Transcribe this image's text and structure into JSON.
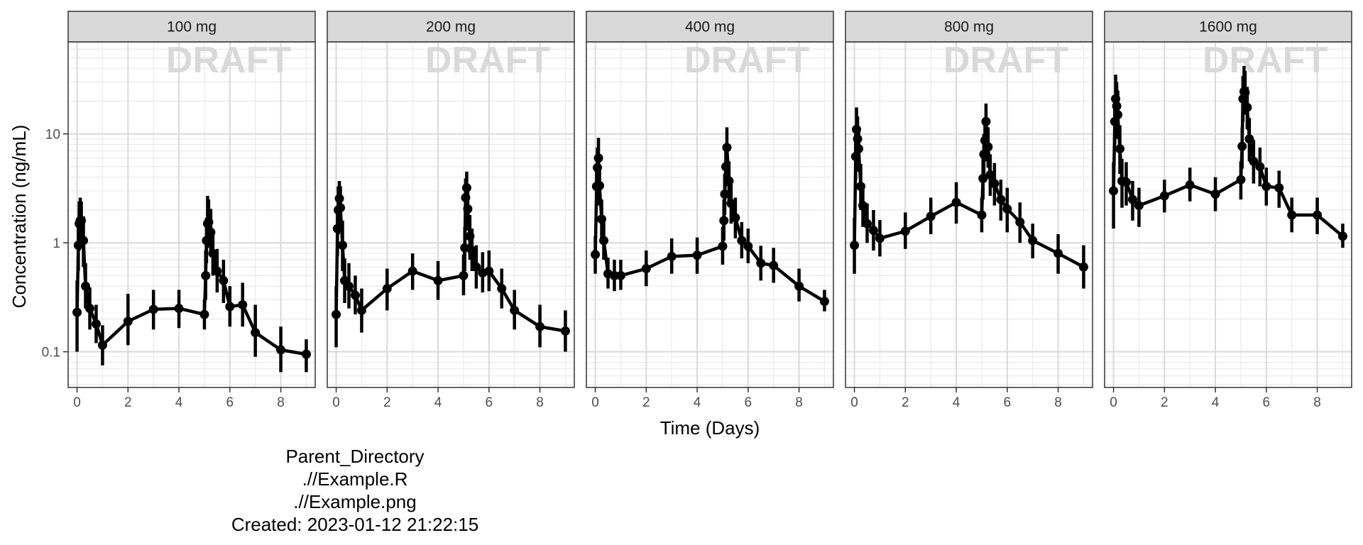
{
  "chart_data": {
    "type": "line",
    "xlabel": "Time (Days)",
    "ylabel": "Concentration (ng/mL)",
    "yscale": "log",
    "xlim": [
      -0.35,
      9.35
    ],
    "ylim": [
      0.047,
      70
    ],
    "xticks": [
      0,
      2,
      4,
      6,
      8
    ],
    "yticks": [
      0.1,
      1,
      10
    ],
    "ytick_labels": [
      "0.1",
      "1",
      "10"
    ],
    "grid": true,
    "watermark": "DRAFT",
    "panels": [
      {
        "label": "100 mg",
        "x": [
          0,
          0.05,
          0.083,
          0.125,
          0.167,
          0.25,
          0.333,
          0.5,
          0.75,
          1,
          2,
          3,
          4,
          5,
          5.05,
          5.083,
          5.125,
          5.167,
          5.25,
          5.333,
          5.5,
          5.75,
          6,
          6.5,
          7,
          8,
          9
        ],
        "y": [
          0.23,
          0.95,
          1.5,
          1.6,
          1.6,
          1.05,
          0.4,
          0.25,
          0.18,
          0.115,
          0.19,
          0.245,
          0.25,
          0.22,
          0.5,
          1.05,
          1.5,
          1.55,
          1.25,
          0.8,
          0.55,
          0.45,
          0.26,
          0.27,
          0.15,
          0.104,
          0.095
        ],
        "lo": [
          0.1,
          0.55,
          0.85,
          0.9,
          1.0,
          0.6,
          0.25,
          0.16,
          0.12,
          0.075,
          0.115,
          0.16,
          0.165,
          0.16,
          0.3,
          0.65,
          0.9,
          0.95,
          0.75,
          0.5,
          0.35,
          0.28,
          0.17,
          0.17,
          0.09,
          0.065,
          0.065
        ],
        "hi": [
          0.45,
          1.6,
          2.4,
          2.6,
          2.4,
          1.75,
          0.65,
          0.39,
          0.27,
          0.175,
          0.34,
          0.37,
          0.37,
          0.3,
          0.85,
          1.7,
          2.7,
          2.5,
          2.05,
          1.3,
          0.88,
          0.7,
          0.4,
          0.43,
          0.27,
          0.17,
          0.13
        ]
      },
      {
        "label": "200 mg",
        "x": [
          0,
          0.05,
          0.083,
          0.125,
          0.167,
          0.25,
          0.333,
          0.5,
          0.75,
          1,
          2,
          3,
          4,
          5,
          5.05,
          5.083,
          5.125,
          5.167,
          5.25,
          5.333,
          5.5,
          5.75,
          6,
          6.5,
          7,
          8,
          9
        ],
        "y": [
          0.22,
          1.35,
          2.0,
          2.55,
          2.1,
          0.95,
          0.45,
          0.4,
          0.33,
          0.24,
          0.38,
          0.55,
          0.45,
          0.5,
          0.9,
          2.6,
          3.2,
          2.05,
          1.15,
          0.85,
          0.6,
          0.53,
          0.55,
          0.38,
          0.24,
          0.17,
          0.155
        ],
        "lo": [
          0.11,
          0.75,
          1.2,
          1.6,
          1.3,
          0.55,
          0.28,
          0.25,
          0.22,
          0.15,
          0.24,
          0.37,
          0.3,
          0.33,
          0.55,
          1.6,
          2.1,
          1.3,
          0.7,
          0.55,
          0.38,
          0.35,
          0.36,
          0.25,
          0.16,
          0.11,
          0.1
        ],
        "hi": [
          0.4,
          2.2,
          3.3,
          3.7,
          3.3,
          1.6,
          0.72,
          0.65,
          0.5,
          0.38,
          0.58,
          0.8,
          0.68,
          0.78,
          1.4,
          3.9,
          4.5,
          3.2,
          1.8,
          1.35,
          0.95,
          0.82,
          0.85,
          0.58,
          0.37,
          0.27,
          0.24
        ]
      },
      {
        "label": "400 mg",
        "x": [
          0,
          0.05,
          0.083,
          0.125,
          0.167,
          0.25,
          0.333,
          0.5,
          0.75,
          1,
          2,
          3,
          4,
          5,
          5.05,
          5.083,
          5.125,
          5.167,
          5.25,
          5.333,
          5.5,
          5.75,
          6,
          6.5,
          7,
          8,
          9
        ],
        "y": [
          0.78,
          3.3,
          4.9,
          6.0,
          3.35,
          1.65,
          1.05,
          0.52,
          0.5,
          0.5,
          0.58,
          0.75,
          0.77,
          0.93,
          1.6,
          2.8,
          5.0,
          7.5,
          3.7,
          2.3,
          1.7,
          1.05,
          0.93,
          0.65,
          0.62,
          0.4,
          0.29
        ],
        "lo": [
          0.52,
          2.2,
          3.2,
          3.8,
          2.2,
          1.1,
          0.7,
          0.38,
          0.36,
          0.37,
          0.4,
          0.52,
          0.52,
          0.63,
          1.05,
          1.8,
          3.3,
          4.9,
          2.4,
          1.5,
          1.1,
          0.72,
          0.65,
          0.45,
          0.43,
          0.29,
          0.235
        ],
        "hi": [
          1.15,
          4.8,
          7.5,
          9.2,
          5.0,
          2.5,
          1.6,
          0.73,
          0.7,
          0.7,
          0.85,
          1.1,
          1.12,
          1.4,
          2.5,
          4.3,
          7.6,
          11.5,
          5.6,
          3.5,
          2.6,
          1.55,
          1.35,
          0.94,
          0.9,
          0.58,
          0.37
        ]
      },
      {
        "label": "800 mg",
        "x": [
          0,
          0.05,
          0.083,
          0.125,
          0.167,
          0.25,
          0.333,
          0.5,
          0.75,
          1,
          2,
          3,
          4,
          5,
          5.05,
          5.083,
          5.125,
          5.167,
          5.25,
          5.333,
          5.5,
          5.75,
          6,
          6.5,
          7,
          8,
          9
        ],
        "y": [
          0.95,
          6.2,
          11.0,
          9.0,
          7.3,
          3.3,
          2.2,
          1.5,
          1.3,
          1.1,
          1.28,
          1.75,
          2.35,
          1.8,
          3.9,
          6.5,
          8.7,
          13.0,
          7.6,
          4.2,
          3.5,
          2.5,
          2.05,
          1.55,
          1.05,
          0.8,
          0.6
        ],
        "lo": [
          0.52,
          3.8,
          6.8,
          5.6,
          4.5,
          2.0,
          1.4,
          1.0,
          0.85,
          0.75,
          0.88,
          1.2,
          1.5,
          1.25,
          2.5,
          4.2,
          5.6,
          8.3,
          4.9,
          2.7,
          2.2,
          1.6,
          1.25,
          1.0,
          0.72,
          0.52,
          0.38
        ],
        "hi": [
          1.7,
          10.0,
          17.5,
          14.5,
          11.5,
          5.3,
          3.5,
          2.3,
          2.0,
          1.62,
          1.9,
          2.6,
          3.6,
          2.6,
          6.0,
          10.0,
          13.5,
          19.0,
          11.5,
          6.5,
          5.4,
          3.8,
          3.2,
          2.35,
          1.5,
          1.2,
          0.95
        ]
      },
      {
        "label": "1600 mg",
        "x": [
          0,
          0.05,
          0.083,
          0.125,
          0.167,
          0.25,
          0.333,
          0.5,
          0.75,
          1,
          2,
          3,
          4,
          5,
          5.05,
          5.083,
          5.125,
          5.167,
          5.25,
          5.333,
          5.5,
          5.75,
          6,
          6.5,
          7,
          8,
          9
        ],
        "y": [
          3.0,
          13.0,
          21.0,
          18.0,
          15.0,
          7.3,
          3.7,
          3.6,
          2.5,
          2.2,
          2.7,
          3.4,
          2.8,
          3.8,
          7.7,
          21.0,
          24.5,
          24.0,
          17.5,
          9.0,
          5.6,
          5.0,
          3.3,
          3.2,
          1.8,
          1.8,
          1.15
        ],
        "lo": [
          1.35,
          8.0,
          12.5,
          10.5,
          9.0,
          4.3,
          2.1,
          2.2,
          1.6,
          1.4,
          1.9,
          2.4,
          1.95,
          2.5,
          4.8,
          13.0,
          15.0,
          15.5,
          11.0,
          5.6,
          3.5,
          3.3,
          2.2,
          2.1,
          1.25,
          1.2,
          0.9
        ],
        "hi": [
          5.5,
          20.0,
          35.0,
          30.0,
          25.0,
          12.0,
          5.9,
          5.5,
          3.7,
          3.2,
          3.8,
          4.9,
          4.0,
          5.6,
          11.5,
          34.0,
          42.0,
          38.0,
          27.0,
          14.0,
          8.8,
          7.5,
          4.9,
          4.6,
          2.6,
          2.6,
          1.5
        ]
      }
    ]
  },
  "caption": {
    "line1": "Parent_Directory",
    "line2": ".//Example.R",
    "line3": ".//Example.png",
    "line4": "Created: 2023-01-12 21:22:15"
  }
}
